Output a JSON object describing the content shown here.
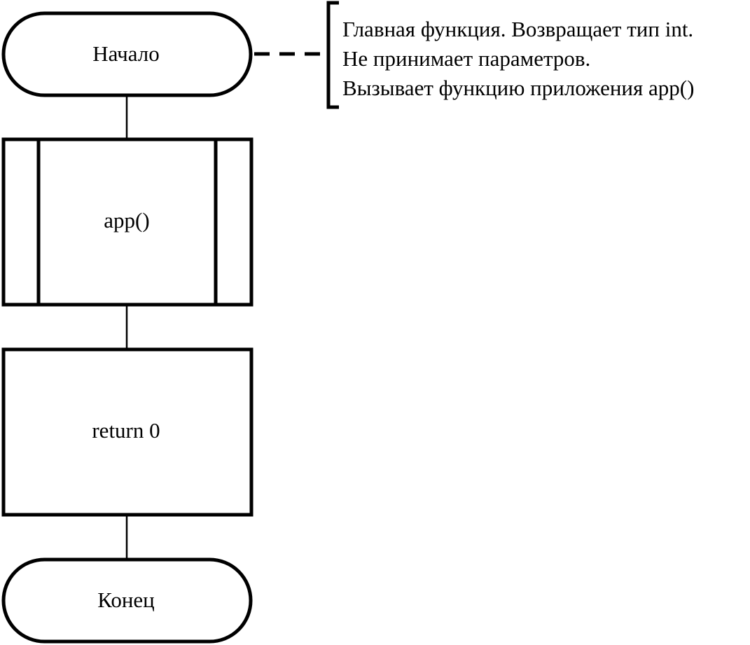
{
  "colors": {
    "stroke": "#000000",
    "background": "#ffffff"
  },
  "flowchart": {
    "start": {
      "label": "Начало"
    },
    "subprocess": {
      "label": "app()"
    },
    "process": {
      "label": "return 0"
    },
    "end": {
      "label": "Конец"
    },
    "comment": {
      "lines": [
        "Главная функция. Возвращает тип int.",
        "Не принимает параметров.",
        "Вызывает функцию приложения app()"
      ]
    }
  }
}
